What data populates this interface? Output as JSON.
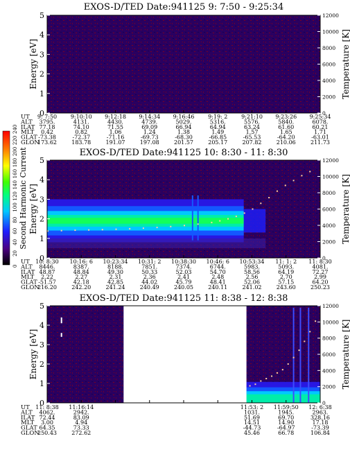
{
  "colorbar": {
    "label": "Second Harmonic Current",
    "ticks": [
      "0",
      "20",
      "40",
      "60",
      "80",
      "100",
      "120",
      "140",
      "160",
      "180",
      "200",
      "220",
      "240"
    ]
  },
  "chart_data": [
    {
      "type": "heatmap",
      "title": "EXOS-D/TED   Date:941125   9: 7:50 - 9:25:34",
      "ylabel": "Energy [eV]",
      "ylabel_right": "Temperature [K]",
      "ylim": [
        0,
        5
      ],
      "ylim_right": [
        0,
        12000
      ],
      "yticks": [
        "0",
        "1",
        "2",
        "3",
        "4",
        "5"
      ],
      "yticks_right": [
        "0",
        "2000",
        "4000",
        "6000",
        "8000",
        "10000",
        "12000"
      ],
      "row_labels": [
        "UT",
        "ALT",
        "ILAT",
        "MLT",
        "GLAT",
        "GLON"
      ],
      "columns": [
        [
          "9: 7:50",
          "3795.",
          "77.18",
          "0.42",
          "-73.38",
          "173.62"
        ],
        [
          "9:10:10",
          "4131.",
          "74.10",
          "0.82",
          "-72.37",
          "183.78"
        ],
        [
          "9:12:18",
          "4430.",
          "71.55",
          "1.06",
          "-71.16",
          "191.07"
        ],
        [
          "9:14:34",
          "4739.",
          "69.09",
          "1.24",
          "-69.73",
          "197.08"
        ],
        [
          "9:16:46",
          "5029.",
          "66.94",
          "1.38",
          "-68.30",
          "201.57"
        ],
        [
          "9:19: 2",
          "5316.",
          "64.94",
          "1.49",
          "-66.85",
          "205.17"
        ],
        [
          "9:21:10",
          "5576.",
          "63.24",
          "1.57",
          "-65.53",
          "207.82"
        ],
        [
          "9:23:26",
          "5840.",
          "61.60",
          "1.65",
          "-64.20",
          "210.06"
        ],
        [
          "9:25:34",
          "6078.",
          "60.21",
          "1.71",
          "-63.01",
          "211.73"
        ]
      ],
      "spectrum": {
        "band_center_ev": null,
        "background_level": 20
      },
      "temperature_points": []
    },
    {
      "type": "heatmap",
      "title": "EXOS-D/TED   Date:941125   10: 8:30 - 11: 8:30",
      "ylabel": "Energy [eV]",
      "ylabel_right": "Temperature [K]",
      "ylim": [
        0,
        5
      ],
      "ylim_right": [
        0,
        12000
      ],
      "yticks": [
        "0",
        "1",
        "2",
        "3",
        "4",
        "5"
      ],
      "yticks_right": [
        "0",
        "2000",
        "4000",
        "6000",
        "8000",
        "10000",
        "12000"
      ],
      "row_labels": [
        "UT",
        "ALT",
        "ILAT",
        "MLT",
        "GLAT",
        "GLON"
      ],
      "columns": [
        [
          "10: 8:30",
          "8446.",
          "48.87",
          "2.22",
          "-51.57",
          "216.20"
        ],
        [
          "10:16: 6",
          "8387.",
          "48.84",
          "2.27",
          "42.18",
          "242.20"
        ],
        [
          "10:23:34",
          "8188.",
          "49.30",
          "2.31",
          "42.85",
          "241.24"
        ],
        [
          "10:31: 2",
          "7851.",
          "50.33",
          "2.36",
          "44.02",
          "240.49"
        ],
        [
          "10:38:30",
          "7374.",
          "52.03",
          "2.41",
          "45.79",
          "240.05"
        ],
        [
          "10:46: 6",
          "6744.",
          "54.70",
          "2.48",
          "48.41",
          "240.11"
        ],
        [
          "10:53:34",
          "5983.",
          "58.56",
          "2.56",
          "52.06",
          "241.02"
        ],
        [
          "11: 1: 2",
          "5093.",
          "64.19",
          "2.70",
          "57.15",
          "243.60"
        ],
        [
          "11: 8:30",
          "4081.",
          "72.27",
          "2.99",
          "64.20",
          "250.23"
        ]
      ],
      "spectrum": {
        "band_center_ev": 1.9,
        "band_end_fraction": 0.72,
        "background_level": 40
      },
      "temperature_points": [
        [
          0.0,
          3300
        ],
        [
          0.05,
          3350
        ],
        [
          0.1,
          3400
        ],
        [
          0.15,
          3430
        ],
        [
          0.2,
          3470
        ],
        [
          0.25,
          3520
        ],
        [
          0.3,
          3580
        ],
        [
          0.35,
          3650
        ],
        [
          0.4,
          3740
        ],
        [
          0.45,
          3850
        ],
        [
          0.5,
          3980
        ],
        [
          0.55,
          4150
        ],
        [
          0.6,
          4350
        ],
        [
          0.63,
          4550
        ],
        [
          0.66,
          4800
        ],
        [
          0.69,
          5100
        ],
        [
          0.72,
          5500
        ],
        [
          0.75,
          6000
        ],
        [
          0.78,
          6700
        ],
        [
          0.81,
          7400
        ],
        [
          0.84,
          8200
        ],
        [
          0.87,
          8900
        ],
        [
          0.9,
          9500
        ],
        [
          0.93,
          10100
        ],
        [
          0.96,
          10600
        ]
      ]
    },
    {
      "type": "heatmap",
      "title": "EXOS-D/TED   Date:941125   11: 8:38 - 12: 8:38",
      "ylabel": "Energy [eV]",
      "ylabel_right": "Temperature [K]",
      "ylim": [
        0,
        5
      ],
      "ylim_right": [
        0,
        12000
      ],
      "yticks": [
        "0",
        "1",
        "2",
        "3",
        "4",
        "5"
      ],
      "yticks_right": [
        "0",
        "2000",
        "4000",
        "6000",
        "8000",
        "10000",
        "12000"
      ],
      "row_labels": [
        "UT",
        "ALT",
        "ILAT",
        "MLT",
        "GLAT",
        "GLON"
      ],
      "columns": [
        [
          "11: 8:38",
          "4062.",
          "72.44",
          "3.00",
          "64.35",
          "250.43"
        ],
        [
          "11:16:14",
          "2942.",
          "83.09",
          "4.94",
          "73.33",
          "272.62"
        ],
        [
          "",
          "",
          "",
          "",
          "",
          ""
        ],
        [
          "",
          "",
          "",
          "",
          "",
          ""
        ],
        [
          "",
          "",
          "",
          "",
          "",
          ""
        ],
        [
          "",
          "",
          "",
          "",
          "",
          ""
        ],
        [
          "11:53: 2",
          "1031.",
          "51.69",
          "14.51",
          "-44.73",
          "45.46"
        ],
        [
          "11:59:50",
          "1945.",
          "69.70",
          "14.90",
          "-64.97",
          "66.78"
        ],
        [
          "12: 6:38",
          "2963.",
          "328.16",
          "17.18",
          "-73.39",
          "106.84"
        ]
      ],
      "data_gap": [
        0.28,
        0.73
      ],
      "spectrum": {
        "band_center_ev": 0.2,
        "band_start_fraction": 0.73,
        "background_level": 25
      },
      "temperature_points": [
        [
          0.74,
          2100
        ],
        [
          0.76,
          2300
        ],
        [
          0.78,
          2700
        ],
        [
          0.8,
          3000
        ],
        [
          0.82,
          3300
        ],
        [
          0.84,
          3700
        ],
        [
          0.86,
          4100
        ],
        [
          0.88,
          4800
        ],
        [
          0.9,
          5600
        ],
        [
          0.92,
          6500
        ],
        [
          0.94,
          7600
        ],
        [
          0.96,
          8800
        ],
        [
          0.98,
          10100
        ]
      ]
    }
  ]
}
